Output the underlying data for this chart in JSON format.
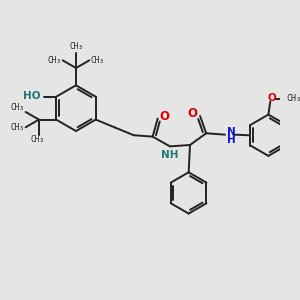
{
  "bg_color": "#e5e5e5",
  "bond_color": "#222222",
  "bond_width": 1.4,
  "O_color": "#dd0000",
  "N_color": "#1111cc",
  "HO_color": "#227777",
  "figsize": [
    3.0,
    3.0
  ],
  "dpi": 100,
  "xlim": [
    0,
    10
  ],
  "ylim": [
    0,
    10
  ]
}
